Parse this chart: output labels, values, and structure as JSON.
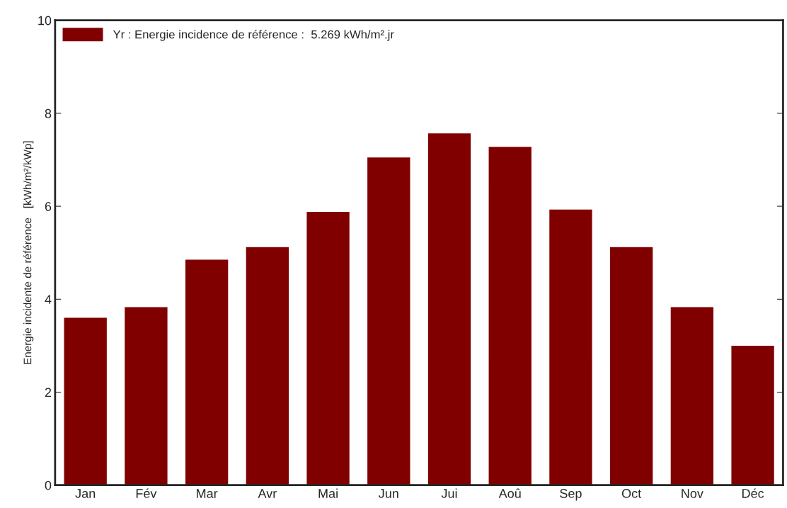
{
  "chart_data": {
    "type": "bar",
    "ylabel": "Energie incidente de référence   [kWh/m²/kWp]",
    "categories": [
      "Jan",
      "Fév",
      "Mar",
      "Avr",
      "Mai",
      "Jun",
      "Jui",
      "Aoû",
      "Sep",
      "Oct",
      "Nov",
      "Déc"
    ],
    "series": [
      {
        "name": "Yr : Energie incidence de référence :  5.269 kWh/m².jr",
        "color": "#800000",
        "values": [
          3.61,
          3.84,
          4.86,
          5.13,
          5.89,
          7.06,
          7.58,
          7.29,
          5.94,
          5.13,
          3.84,
          3.01
        ]
      }
    ],
    "ylim": [
      0,
      10
    ],
    "yticks": [
      0,
      2,
      4,
      6,
      8,
      10
    ],
    "grid": false,
    "legend": "top left"
  }
}
